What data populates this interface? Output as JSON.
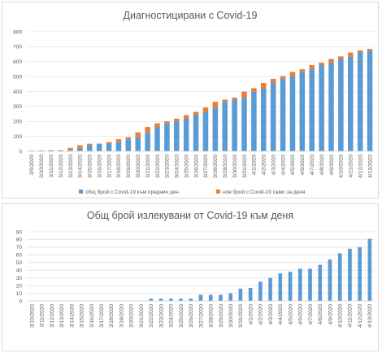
{
  "chart_data": [
    {
      "type": "bar",
      "stacked": true,
      "title": "Диагностицирани с Covid-19",
      "categories": [
        "3/9/2020",
        "3/10/2020",
        "3/11/2020",
        "3/12/2020",
        "3/13/2020",
        "3/14/2020",
        "3/15/2020",
        "3/16/2020",
        "3/17/2020",
        "3/18/2020",
        "3/19/2020",
        "3/20/2020",
        "3/21/2020",
        "3/22/2020",
        "3/23/2020",
        "3/24/2020",
        "3/25/2020",
        "3/26/2020",
        "3/27/2020",
        "3/28/2020",
        "3/29/2020",
        "3/30/2020",
        "3/31/2020",
        "4/1/2020",
        "4/2/2020",
        "4/3/2020",
        "4/4/2020",
        "4/5/2020",
        "4/6/2020",
        "4/7/2020",
        "4/8/2020",
        "4/9/2020",
        "4/10/2020",
        "4/11/2020",
        "4/12/2020",
        "4/13/2020"
      ],
      "series": [
        {
          "name": "общ брой с Covid-19 към предния ден",
          "color": "#5b9bd5",
          "values": [
            0,
            4,
            6,
            7,
            7,
            23,
            41,
            51,
            52,
            62,
            81,
            94,
            127,
            163,
            187,
            201,
            218,
            242,
            264,
            293,
            331,
            346,
            359,
            399,
            422,
            457,
            485,
            503,
            531,
            549,
            577,
            593,
            618,
            635,
            661,
            675
          ]
        },
        {
          "name": "нов брой с Covid-19 само за деня",
          "color": "#ed7d31",
          "values": [
            4,
            2,
            1,
            0,
            16,
            18,
            10,
            1,
            10,
            19,
            13,
            33,
            36,
            24,
            14,
            17,
            24,
            22,
            29,
            38,
            15,
            13,
            40,
            23,
            35,
            28,
            18,
            28,
            18,
            28,
            16,
            25,
            17,
            26,
            14,
            10
          ]
        }
      ],
      "ylim": [
        0,
        800
      ],
      "yticks": [
        0,
        100,
        200,
        300,
        400,
        500,
        600,
        700,
        800
      ],
      "grid": true,
      "legend": "bottom"
    },
    {
      "type": "bar",
      "title": "Общ брой излекувани от Covid-19 към деня",
      "categories": [
        "3/10/2020",
        "3/11/2020",
        "3/12/2020",
        "3/13/2020",
        "3/14/2020",
        "3/15/2020",
        "3/16/2020",
        "3/17/2020",
        "3/18/2020",
        "3/19/2020",
        "3/20/2020",
        "3/21/2020",
        "3/22/2020",
        "3/23/2020",
        "3/24/2020",
        "3/25/2020",
        "3/26/2020",
        "3/27/2020",
        "3/28/2020",
        "3/29/2020",
        "3/30/2020",
        "3/31/2020",
        "4/1/2020",
        "4/2/2020",
        "4/3/2020",
        "4/4/2020",
        "4/5/2020",
        "4/6/2020",
        "4/7/2020",
        "4/8/2020",
        "4/9/2020",
        "4/10/2020",
        "4/11/2020",
        "4/12/2020",
        "4/13/2020"
      ],
      "series": [
        {
          "color": "#5b9bd5",
          "values": [
            0,
            0,
            0,
            0,
            0,
            0,
            0,
            0,
            0,
            0,
            0,
            0,
            3,
            3,
            3,
            3,
            3,
            8,
            8,
            8,
            10,
            16,
            17,
            25,
            30,
            36,
            38,
            42,
            42,
            47,
            54,
            62,
            68,
            70,
            81
          ]
        }
      ],
      "ylim": [
        0,
        90
      ],
      "yticks": [
        0,
        10,
        20,
        30,
        40,
        50,
        60,
        70,
        80,
        90
      ],
      "grid": true
    }
  ]
}
